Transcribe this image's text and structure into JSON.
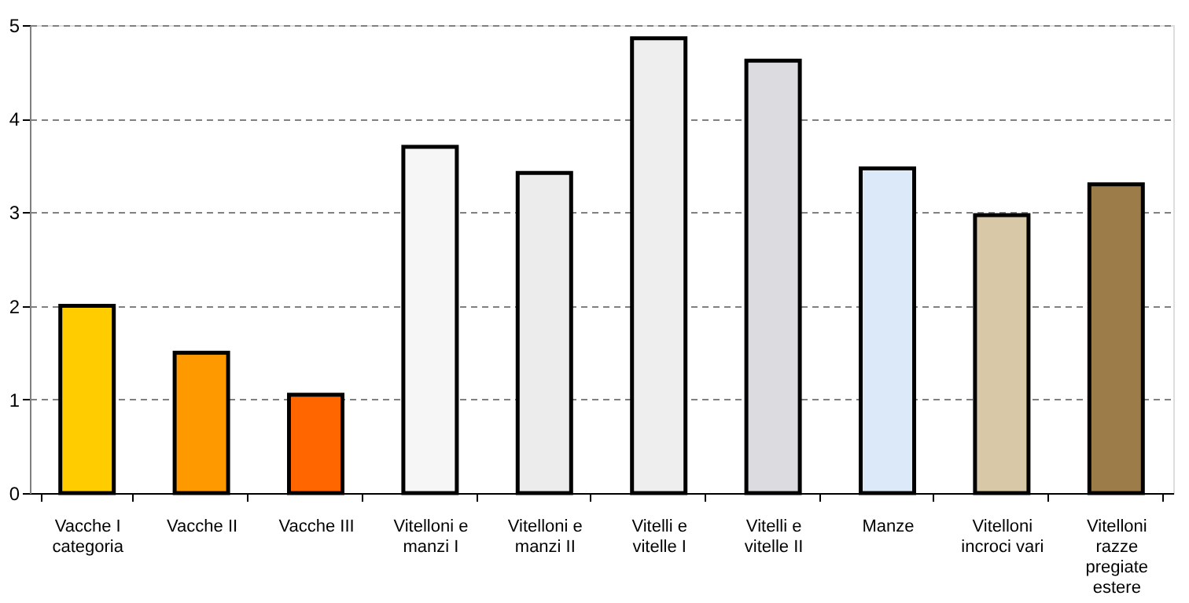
{
  "chart_data": {
    "type": "bar",
    "categories": [
      "Vacche I categoria",
      "Vacche II",
      "Vacche III",
      "Vitelloni e manzi I",
      "Vitelloni e manzi II",
      "Vitelli e vitelle I",
      "Vitelli e vitelle II",
      "Manze",
      "Vitelloni incroci vari",
      "Vitelloni razze pregiate estere"
    ],
    "values": [
      2.0,
      1.5,
      1.05,
      3.7,
      3.42,
      4.86,
      4.62,
      3.47,
      2.97,
      3.3
    ],
    "colors": [
      "#ffcc00",
      "#ff9900",
      "#ff6600",
      "#f6f6f6",
      "#ececec",
      "#eeeeee",
      "#dcdce0",
      "#dce9f8",
      "#d8c8a8",
      "#9c7c48"
    ],
    "ylim": [
      0,
      5
    ],
    "yticks": [
      0,
      1,
      2,
      3,
      4,
      5
    ],
    "grid": "y"
  }
}
